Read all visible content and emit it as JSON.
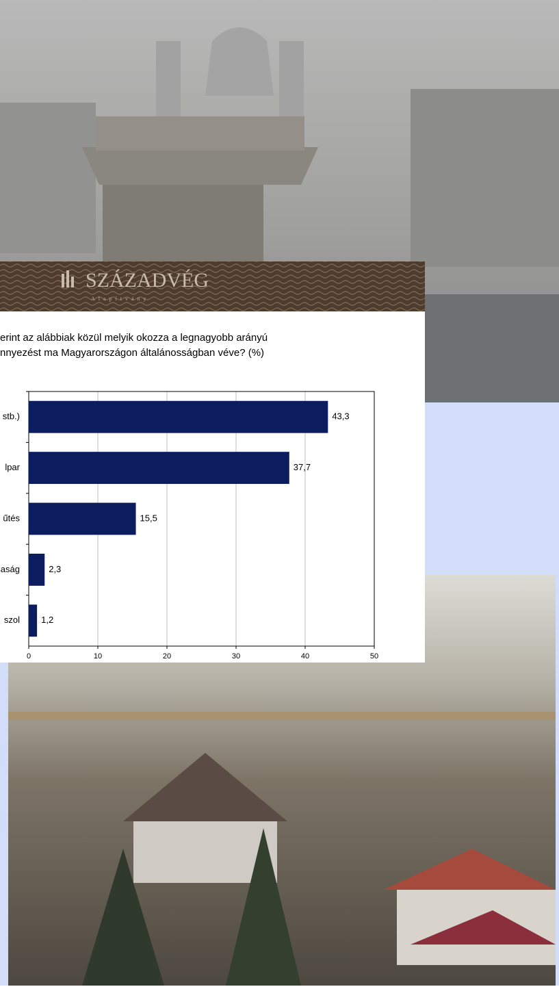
{
  "chart_data": {
    "type": "bar",
    "orientation": "horizontal",
    "brand": "SZÁZADVÉG",
    "brand_sub": "Alapítvány",
    "title_lines": [
      "erint az alábbiak közül melyik okozza a legnagyobb arányú",
      "nnyezést ma Magyarországon általánosságban véve?  (%)"
    ],
    "categories": [
      "stb.)",
      "lpar",
      "űtés",
      "aság",
      "szol"
    ],
    "values": [
      43.3,
      37.7,
      15.5,
      2.3,
      1.2
    ],
    "value_labels": [
      "43,3",
      "37,7",
      "15,5",
      "2,3",
      "1,2"
    ],
    "color": "#0b1d5e",
    "xlim": [
      0,
      50
    ],
    "xticks": [
      0,
      10,
      20,
      30,
      40,
      50
    ],
    "grid": true
  }
}
